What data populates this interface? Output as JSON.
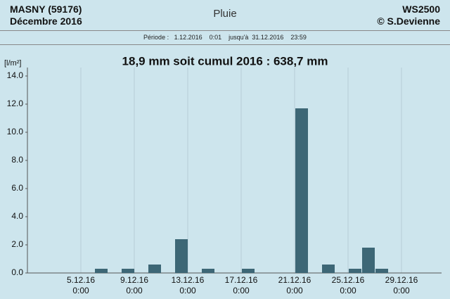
{
  "header": {
    "station": "MASNY (59176)",
    "month": "Décembre 2016",
    "title": "Pluie",
    "device": "WS2500",
    "author": "© S.Devienne",
    "period": "Période :   1.12.2016    0:01    jusqu'à  31.12.2016    23:59"
  },
  "chart_data": {
    "type": "bar",
    "title": "18,9 mm  soit cumul 2016 : 638,7 mm",
    "y_label": "[l/m²]",
    "x": [
      6,
      8,
      10,
      12,
      14,
      17,
      21,
      23,
      25,
      26,
      27
    ],
    "values": [
      0.3,
      0.3,
      0.6,
      2.4,
      0.3,
      0.3,
      11.7,
      0.6,
      0.3,
      1.8,
      0.3
    ],
    "color": "#3d6776",
    "xlim": [
      1,
      32
    ],
    "xticks": [
      {
        "value": 5,
        "label": "5.12.16\n0:00"
      },
      {
        "value": 9,
        "label": "9.12.16\n0:00"
      },
      {
        "value": 13,
        "label": "13.12.16\n0:00"
      },
      {
        "value": 17,
        "label": "17.12.16\n0:00"
      },
      {
        "value": 21,
        "label": "21.12.16\n0:00"
      },
      {
        "value": 25,
        "label": "25.12.16\n0:00"
      },
      {
        "value": 29,
        "label": "29.12.16\n0:00"
      }
    ],
    "ylim": [
      0,
      14
    ],
    "yticks": [
      {
        "value": 0,
        "label": "0.0"
      },
      {
        "value": 2,
        "label": "2.0"
      },
      {
        "value": 4,
        "label": "4.0"
      },
      {
        "value": 6,
        "label": "6.0"
      },
      {
        "value": 8,
        "label": "8.0"
      },
      {
        "value": 10,
        "label": "10.0"
      },
      {
        "value": 12,
        "label": "12.0"
      },
      {
        "value": 14,
        "label": "14.0"
      }
    ],
    "grid": true
  }
}
